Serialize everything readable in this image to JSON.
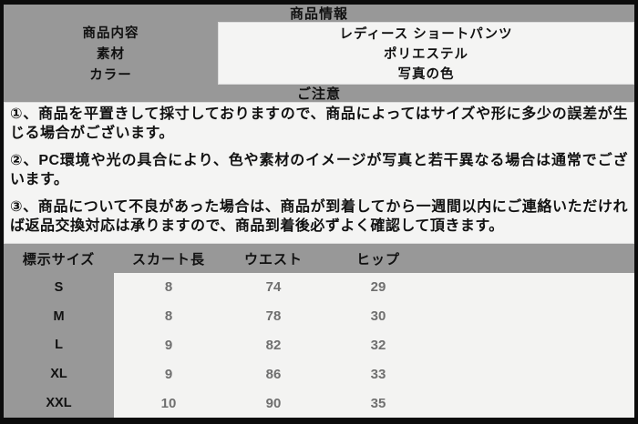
{
  "colors": {
    "background_gray": "#989898",
    "panel_light": "#f4f4f3",
    "frame_black": "#0c0c0c",
    "number_text_gray": "#6f6f6f",
    "main_text_black": "#111111"
  },
  "header": {
    "title": "商品情報"
  },
  "product": {
    "rows": [
      {
        "label": "商品内容",
        "value": "レディース ショートパンツ"
      },
      {
        "label": "素材",
        "value": "ポリエステル"
      },
      {
        "label": "カラー",
        "value": "写真の色"
      }
    ]
  },
  "notice": {
    "title": "ご注意",
    "paragraphs": [
      "①、商品を平置きして採寸しておりますので、商品によってはサイズや形に多少の誤差が生じる場合がございます。",
      "②、PC環境や光の具合により、色や素材のイメージが写真と若干異なる場合は通常でございます。",
      "③、商品について不良があった場合は、商品が到着してから一週間以内にご連絡いただければ返品交換対応は承りますので、商品到着後必ずよく確認して頂きます。"
    ]
  },
  "size_chart": {
    "columns": [
      "標示サイズ",
      "スカート長",
      "ウエスト",
      "ヒップ"
    ],
    "rows": [
      {
        "size": "S",
        "skirt_length": "8",
        "waist": "74",
        "hip": "29"
      },
      {
        "size": "M",
        "skirt_length": "8",
        "waist": "78",
        "hip": "30"
      },
      {
        "size": "L",
        "skirt_length": "9",
        "waist": "82",
        "hip": "32"
      },
      {
        "size": "XL",
        "skirt_length": "9",
        "waist": "86",
        "hip": "33"
      },
      {
        "size": "XXL",
        "skirt_length": "10",
        "waist": "90",
        "hip": "35"
      }
    ]
  }
}
